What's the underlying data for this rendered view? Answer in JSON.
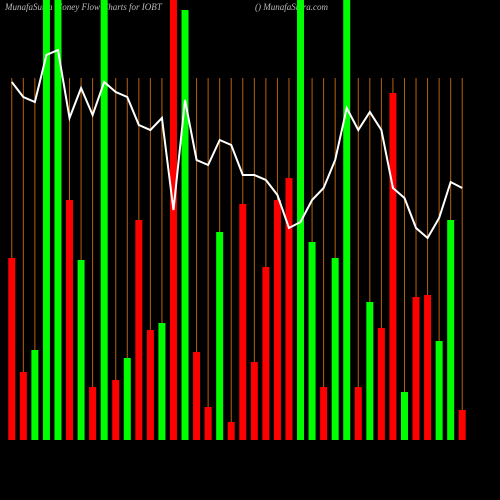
{
  "chart_data": {
    "type": "bar",
    "title": "MunafaSutra  Money Flow  Charts for IOBT",
    "subtitle": "() MunafaSutra.com",
    "ylim": [
      0,
      440
    ],
    "values": [
      182,
      68,
      90,
      440,
      440,
      240,
      180,
      53,
      440,
      60,
      82,
      220,
      110,
      117,
      440,
      430,
      88,
      33,
      208,
      18,
      236,
      78,
      173,
      240,
      262,
      440,
      198,
      53,
      182,
      440,
      53,
      138,
      112,
      347,
      48,
      143,
      145,
      99,
      220,
      30
    ],
    "colors": [
      "#ff0000",
      "#ff0000",
      "#00ff00",
      "#00ff00",
      "#00ff00",
      "#ff0000",
      "#00ff00",
      "#ff0000",
      "#00ff00",
      "#ff0000",
      "#00ff00",
      "#ff0000",
      "#ff0000",
      "#00ff00",
      "#ff0000",
      "#00ff00",
      "#ff0000",
      "#ff0000",
      "#00ff00",
      "#ff0000",
      "#ff0000",
      "#ff0000",
      "#ff0000",
      "#ff0000",
      "#ff0000",
      "#00ff00",
      "#00ff00",
      "#ff0000",
      "#00ff00",
      "#00ff00",
      "#ff0000",
      "#00ff00",
      "#ff0000",
      "#ff0000",
      "#00ff00",
      "#ff0000",
      "#ff0000",
      "#00ff00",
      "#00ff00",
      "#ff0000"
    ],
    "line_values": [
      358,
      343,
      338,
      385,
      390,
      322,
      352,
      325,
      358,
      348,
      343,
      315,
      310,
      322,
      230,
      340,
      280,
      275,
      300,
      295,
      265,
      265,
      260,
      245,
      212,
      218,
      240,
      252,
      280,
      332,
      310,
      328,
      310,
      252,
      242,
      212,
      202,
      222,
      258,
      252
    ],
    "line_color": "#ffffff",
    "grid_color": "#b8600b"
  }
}
